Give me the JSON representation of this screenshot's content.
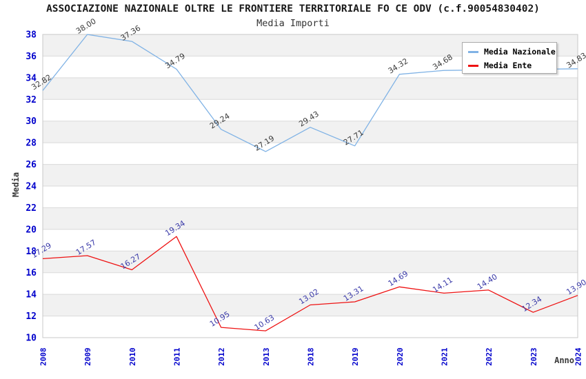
{
  "chart_data": {
    "type": "line",
    "title": "ASSOCIAZIONE NAZIONALE OLTRE LE FRONTIERE TERRITORIALE FO CE ODV (c.f.90054830402)",
    "subtitle": "Media Importi",
    "xlabel": "Anno",
    "ylabel": "Media",
    "ylim": [
      10,
      38
    ],
    "ytick_step": 2,
    "categories": [
      "2008",
      "2009",
      "2010",
      "2011",
      "2012",
      "2013",
      "2018",
      "2019",
      "2020",
      "2021",
      "2022",
      "2023",
      "2024"
    ],
    "series": [
      {
        "name": "Media Nazionale",
        "color": "#7fb2e5",
        "label_color": "#3a3a3a",
        "values": [
          32.82,
          38.0,
          37.36,
          34.79,
          29.24,
          27.19,
          29.43,
          27.71,
          34.32,
          34.68,
          34.72,
          34.78,
          34.83
        ],
        "labels": [
          "32.82",
          "38.00",
          "37.36",
          "34.79",
          "29.24",
          "27.19",
          "29.43",
          "27.71",
          "34.32",
          "34.68",
          null,
          null,
          "34.83"
        ]
      },
      {
        "name": "Media Ente",
        "color": "#ee1111",
        "label_color": "#3939a8",
        "values": [
          17.29,
          17.57,
          16.27,
          19.34,
          10.95,
          10.63,
          13.02,
          13.31,
          14.69,
          14.11,
          14.4,
          12.34,
          13.9
        ],
        "labels": [
          "17.29",
          "17.57",
          "16.27",
          "19.34",
          "10.95",
          "10.63",
          "13.02",
          "13.31",
          "14.69",
          "14.11",
          "14.40",
          "12.34",
          "13.90"
        ]
      }
    ],
    "legend": {
      "position": "top-right"
    },
    "grid": "horizontal-bands",
    "band_colors": [
      "#f1f1f1",
      "#ffffff"
    ],
    "grid_color": "#dadada",
    "frame_color": "#c8c8c8",
    "tick_color": "#0000cc",
    "axis_title_color": "#3a3a3a"
  }
}
